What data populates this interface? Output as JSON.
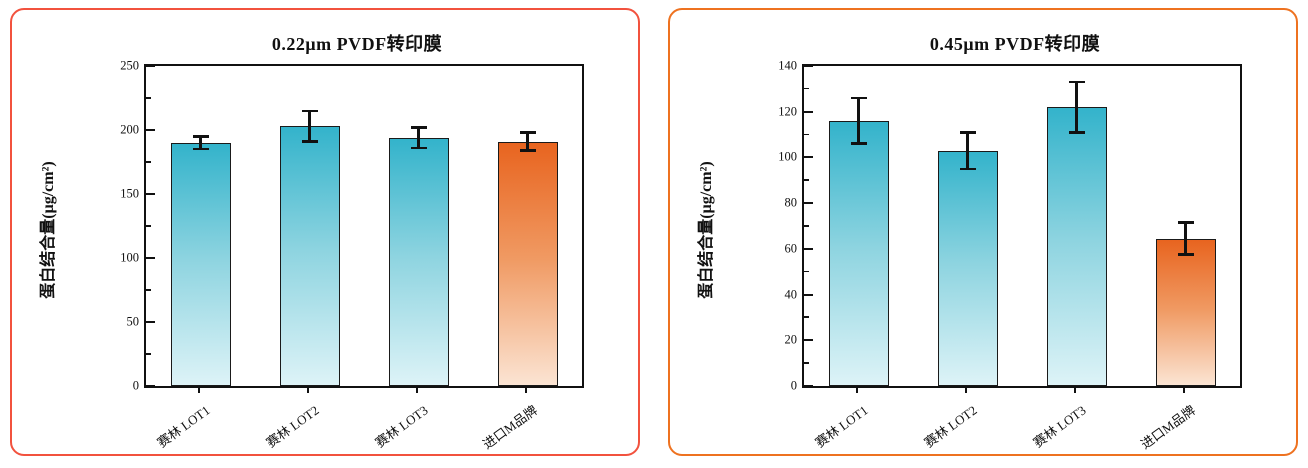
{
  "page": {
    "background": "#ffffff"
  },
  "panels": [
    {
      "border_color": "#f2523e"
    },
    {
      "border_color": "#ee7220"
    }
  ],
  "colors": {
    "axis": "#111111",
    "bar_border": "#1a1a1a",
    "error_bar": "#111111",
    "teal_top": "#33b3cb",
    "teal_bottom": "#ddf3f7",
    "orange_top": "#e8641f",
    "orange_bottom": "#fbe4d3"
  },
  "chart_data": [
    {
      "type": "bar",
      "title": "0.22μm PVDF转印膜",
      "xlabel": "",
      "ylabel": "蛋白结合量(μg/cm²)",
      "categories": [
        "赛林 LOT1",
        "赛林 LOT2",
        "赛林 LOT3",
        "进口M品牌"
      ],
      "values": [
        190,
        203,
        194,
        191
      ],
      "errors": [
        5,
        12,
        8,
        7
      ],
      "bar_styles": [
        "teal",
        "teal",
        "teal",
        "orange"
      ],
      "ylim": [
        0,
        250
      ],
      "yticks": [
        250,
        200,
        150,
        100,
        50,
        0
      ],
      "grid": false,
      "legend": null
    },
    {
      "type": "bar",
      "title": "0.45μm PVDF转印膜",
      "xlabel": "",
      "ylabel": "蛋白结合量(μg/cm²)",
      "categories": [
        "赛林 LOT1",
        "赛林 LOT2",
        "赛林 LOT3",
        "进口M品牌"
      ],
      "values": [
        116,
        103,
        122,
        64.5
      ],
      "errors": [
        10,
        8,
        11,
        7
      ],
      "bar_styles": [
        "teal",
        "teal",
        "teal",
        "orange"
      ],
      "ylim": [
        0,
        140
      ],
      "yticks": [
        140,
        120,
        100,
        80,
        60,
        40,
        20,
        0
      ],
      "grid": false,
      "legend": null
    }
  ]
}
